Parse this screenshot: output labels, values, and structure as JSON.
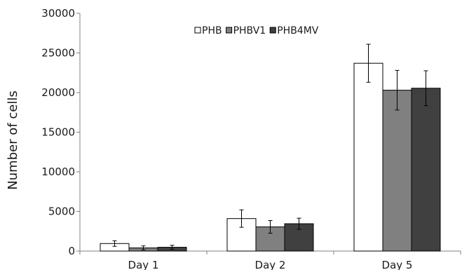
{
  "chart_data": {
    "type": "bar",
    "ylabel": "Number of cells",
    "xlabel": "",
    "ylim": [
      0,
      30000
    ],
    "yticks": [
      0,
      5000,
      10000,
      15000,
      20000,
      25000,
      30000
    ],
    "categories": [
      "Day 1",
      "Day 2",
      "Day 5"
    ],
    "series": [
      {
        "name": "PHB",
        "color": "#ffffff",
        "values": [
          950,
          4100,
          23700
        ],
        "errors": [
          350,
          1100,
          2400
        ]
      },
      {
        "name": "PHBV1",
        "color": "#808080",
        "values": [
          400,
          3050,
          20300
        ],
        "errors": [
          250,
          800,
          2500
        ]
      },
      {
        "name": "PHB4MV",
        "color": "#404040",
        "values": [
          480,
          3450,
          20550
        ],
        "errors": [
          250,
          700,
          2200
        ]
      }
    ],
    "grid": false,
    "legend": {
      "position": "top-center"
    },
    "error_bars": true
  }
}
